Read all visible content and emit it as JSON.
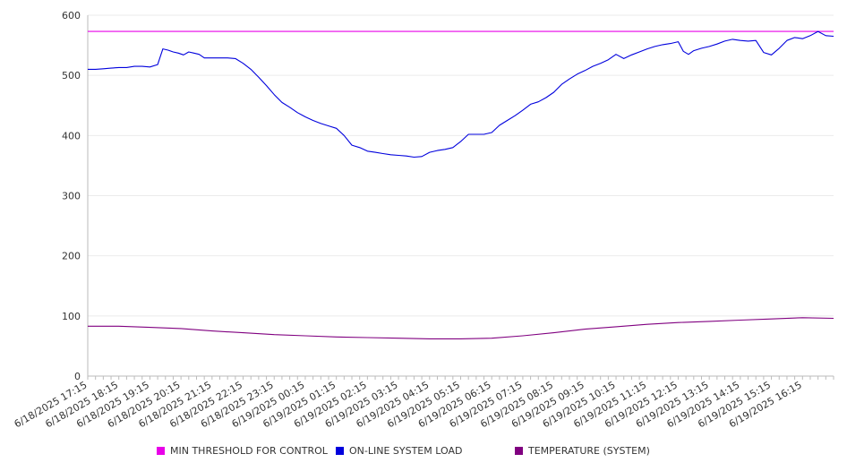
{
  "chart_data": {
    "type": "line",
    "title": "",
    "xlabel": "",
    "ylabel": "",
    "ylim": [
      0,
      600
    ],
    "yticks": [
      0,
      100,
      200,
      300,
      400,
      500,
      600
    ],
    "grid": true,
    "legend_position": "bottom",
    "x_tick_labels": [
      "6/18/2025 17:15",
      "6/18/2025 18:15",
      "6/18/2025 19:15",
      "6/18/2025 20:15",
      "6/18/2025 21:15",
      "6/18/2025 22:15",
      "6/18/2025 23:15",
      "6/19/2025 00:15",
      "6/19/2025 01:15",
      "6/19/2025 02:15",
      "6/19/2025 03:15",
      "6/19/2025 04:15",
      "6/19/2025 05:15",
      "6/19/2025 06:15",
      "6/19/2025 07:15",
      "6/19/2025 08:15",
      "6/19/2025 09:15",
      "6/19/2025 10:15",
      "6/19/2025 11:15",
      "6/19/2025 12:15",
      "6/19/2025 13:15",
      "6/19/2025 14:15",
      "6/19/2025 15:15",
      "6/19/2025 16:15"
    ],
    "x_end": "6/19/2025 17:15",
    "series": [
      {
        "name": "MIN THRESHOLD FOR CONTROL",
        "color": "#e800e8",
        "values": [
          [
            "6/18/2025 17:15",
            573
          ],
          [
            "6/19/2025 17:15",
            573
          ]
        ]
      },
      {
        "name": "ON-LINE SYSTEM LOAD",
        "color": "#0000dd",
        "values": [
          [
            "6/18/2025 17:15",
            510
          ],
          [
            "6/18/2025 17:30",
            510
          ],
          [
            "6/18/2025 17:45",
            511
          ],
          [
            "6/18/2025 18:00",
            512
          ],
          [
            "6/18/2025 18:15",
            513
          ],
          [
            "6/18/2025 18:30",
            513
          ],
          [
            "6/18/2025 18:45",
            515
          ],
          [
            "6/18/2025 19:00",
            515
          ],
          [
            "6/18/2025 19:15",
            514
          ],
          [
            "6/18/2025 19:30",
            518
          ],
          [
            "6/18/2025 19:40",
            544
          ],
          [
            "6/18/2025 19:50",
            542
          ],
          [
            "6/18/2025 20:00",
            539
          ],
          [
            "6/18/2025 20:10",
            537
          ],
          [
            "6/18/2025 20:20",
            534
          ],
          [
            "6/18/2025 20:30",
            539
          ],
          [
            "6/18/2025 20:40",
            537
          ],
          [
            "6/18/2025 20:50",
            535
          ],
          [
            "6/18/2025 21:00",
            529
          ],
          [
            "6/18/2025 21:15",
            529
          ],
          [
            "6/18/2025 21:30",
            529
          ],
          [
            "6/18/2025 21:45",
            529
          ],
          [
            "6/18/2025 22:00",
            528
          ],
          [
            "6/18/2025 22:15",
            520
          ],
          [
            "6/18/2025 22:30",
            510
          ],
          [
            "6/18/2025 22:45",
            497
          ],
          [
            "6/18/2025 23:00",
            483
          ],
          [
            "6/18/2025 23:15",
            468
          ],
          [
            "6/18/2025 23:30",
            455
          ],
          [
            "6/18/2025 23:45",
            447
          ],
          [
            "6/19/2025 00:00",
            438
          ],
          [
            "6/19/2025 00:15",
            431
          ],
          [
            "6/19/2025 00:30",
            425
          ],
          [
            "6/19/2025 00:45",
            420
          ],
          [
            "6/19/2025 01:00",
            416
          ],
          [
            "6/19/2025 01:15",
            412
          ],
          [
            "6/19/2025 01:30",
            400
          ],
          [
            "6/19/2025 01:45",
            384
          ],
          [
            "6/19/2025 02:00",
            380
          ],
          [
            "6/19/2025 02:15",
            374
          ],
          [
            "6/19/2025 02:30",
            372
          ],
          [
            "6/19/2025 02:45",
            370
          ],
          [
            "6/19/2025 03:00",
            368
          ],
          [
            "6/19/2025 03:15",
            367
          ],
          [
            "6/19/2025 03:30",
            366
          ],
          [
            "6/19/2025 03:45",
            364
          ],
          [
            "6/19/2025 04:00",
            365
          ],
          [
            "6/19/2025 04:15",
            372
          ],
          [
            "6/19/2025 04:30",
            375
          ],
          [
            "6/19/2025 04:45",
            377
          ],
          [
            "6/19/2025 05:00",
            380
          ],
          [
            "6/19/2025 05:15",
            390
          ],
          [
            "6/19/2025 05:30",
            402
          ],
          [
            "6/19/2025 05:45",
            402
          ],
          [
            "6/19/2025 06:00",
            402
          ],
          [
            "6/19/2025 06:15",
            405
          ],
          [
            "6/19/2025 06:30",
            417
          ],
          [
            "6/19/2025 06:45",
            425
          ],
          [
            "6/19/2025 07:00",
            433
          ],
          [
            "6/19/2025 07:15",
            442
          ],
          [
            "6/19/2025 07:30",
            452
          ],
          [
            "6/19/2025 07:45",
            456
          ],
          [
            "6/19/2025 08:00",
            463
          ],
          [
            "6/19/2025 08:15",
            472
          ],
          [
            "6/19/2025 08:30",
            485
          ],
          [
            "6/19/2025 08:45",
            494
          ],
          [
            "6/19/2025 09:00",
            502
          ],
          [
            "6/19/2025 09:15",
            508
          ],
          [
            "6/19/2025 09:30",
            515
          ],
          [
            "6/19/2025 09:45",
            520
          ],
          [
            "6/19/2025 10:00",
            526
          ],
          [
            "6/19/2025 10:15",
            535
          ],
          [
            "6/19/2025 10:30",
            528
          ],
          [
            "6/19/2025 10:45",
            534
          ],
          [
            "6/19/2025 11:00",
            539
          ],
          [
            "6/19/2025 11:15",
            544
          ],
          [
            "6/19/2025 11:30",
            548
          ],
          [
            "6/19/2025 11:45",
            551
          ],
          [
            "6/19/2025 12:00",
            553
          ],
          [
            "6/19/2025 12:15",
            556
          ],
          [
            "6/19/2025 12:25",
            540
          ],
          [
            "6/19/2025 12:35",
            535
          ],
          [
            "6/19/2025 12:45",
            541
          ],
          [
            "6/19/2025 13:00",
            545
          ],
          [
            "6/19/2025 13:15",
            548
          ],
          [
            "6/19/2025 13:30",
            552
          ],
          [
            "6/19/2025 13:45",
            557
          ],
          [
            "6/19/2025 14:00",
            560
          ],
          [
            "6/19/2025 14:15",
            558
          ],
          [
            "6/19/2025 14:30",
            557
          ],
          [
            "6/19/2025 14:45",
            558
          ],
          [
            "6/19/2025 15:00",
            538
          ],
          [
            "6/19/2025 15:15",
            534
          ],
          [
            "6/19/2025 15:30",
            545
          ],
          [
            "6/19/2025 15:45",
            558
          ],
          [
            "6/19/2025 16:00",
            563
          ],
          [
            "6/19/2025 16:15",
            561
          ],
          [
            "6/19/2025 16:30",
            566
          ],
          [
            "6/19/2025 16:45",
            573
          ],
          [
            "6/19/2025 17:00",
            566
          ],
          [
            "6/19/2025 17:15",
            565
          ]
        ]
      },
      {
        "name": "TEMPERATURE (SYSTEM)",
        "color": "#800080",
        "values": [
          [
            "6/18/2025 17:15",
            83
          ],
          [
            "6/18/2025 18:15",
            83
          ],
          [
            "6/18/2025 19:15",
            81
          ],
          [
            "6/18/2025 20:15",
            79
          ],
          [
            "6/18/2025 21:15",
            75
          ],
          [
            "6/18/2025 22:15",
            72
          ],
          [
            "6/18/2025 23:15",
            69
          ],
          [
            "6/19/2025 00:15",
            67
          ],
          [
            "6/19/2025 01:15",
            65
          ],
          [
            "6/19/2025 02:15",
            64
          ],
          [
            "6/19/2025 03:15",
            63
          ],
          [
            "6/19/2025 04:15",
            62
          ],
          [
            "6/19/2025 05:15",
            62
          ],
          [
            "6/19/2025 06:15",
            63
          ],
          [
            "6/19/2025 07:15",
            67
          ],
          [
            "6/19/2025 08:15",
            72
          ],
          [
            "6/19/2025 09:15",
            78
          ],
          [
            "6/19/2025 10:15",
            82
          ],
          [
            "6/19/2025 11:15",
            86
          ],
          [
            "6/19/2025 12:15",
            89
          ],
          [
            "6/19/2025 13:15",
            91
          ],
          [
            "6/19/2025 14:15",
            93
          ],
          [
            "6/19/2025 15:15",
            95
          ],
          [
            "6/19/2025 16:15",
            97
          ],
          [
            "6/19/2025 17:15",
            96
          ]
        ]
      }
    ]
  }
}
